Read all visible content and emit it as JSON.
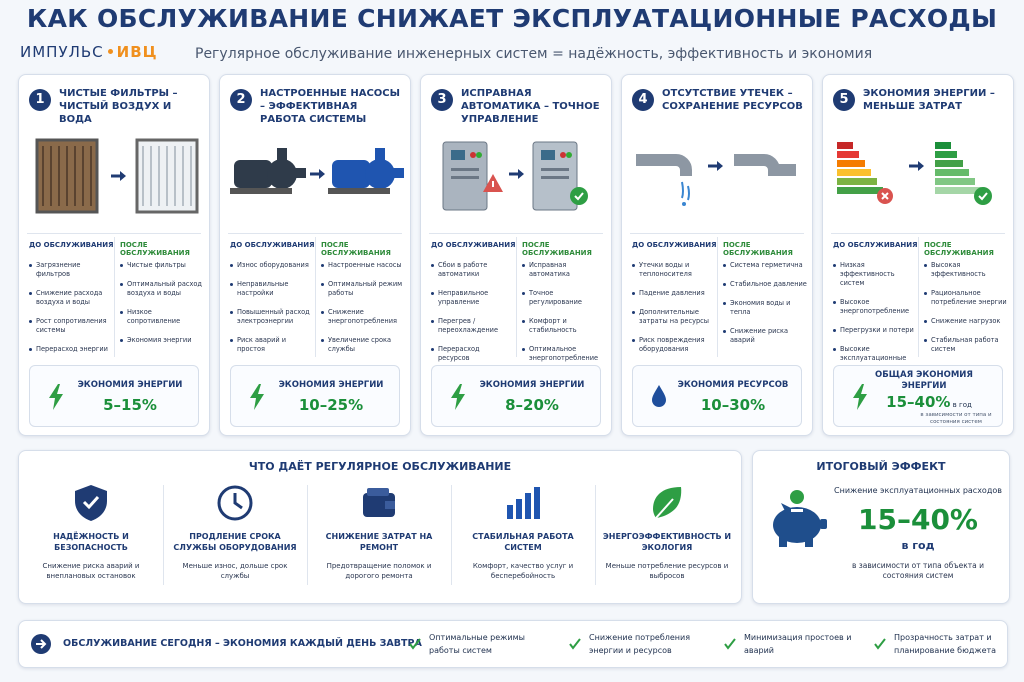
{
  "header": {
    "title": "КАК ОБСЛУЖИВАНИЕ СНИЖАЕТ ЭКСПЛУАТАЦИОННЫЕ РАСХОДЫ",
    "logo": {
      "name": "ИМПУЛЬС",
      "accent": "ИВЦ"
    },
    "subtitle": "Регулярное обслуживание инженерных систем = надёжность, эффективность и экономия"
  },
  "cards": [
    {
      "number": "1",
      "title": "ЧИСТЫЕ ФИЛЬТРЫ – ЧИСТЫЙ ВОЗДУХ И ВОДА",
      "before_label": "ДО ОБСЛУЖИВАНИЯ",
      "after_label": "ПОСЛЕ ОБСЛУЖИВАНИЯ",
      "before": [
        "Загрязнение фильтров",
        "Снижение расхода воздуха и воды",
        "Рост сопротивления системы",
        "Перерасход энергии"
      ],
      "after": [
        "Чистые фильтры",
        "Оптимальный расход воздуха и воды",
        "Низкое сопротивление",
        "Экономия энергии"
      ],
      "saving_label": "ЭКОНОМИЯ ЭНЕРГИИ",
      "saving": "5–15%"
    },
    {
      "number": "2",
      "title": "НАСТРОЕННЫЕ НАСОСЫ – ЭФФЕКТИВНАЯ РАБОТА СИСТЕМЫ",
      "before_label": "ДО ОБСЛУЖИВАНИЯ",
      "after_label": "ПОСЛЕ ОБСЛУЖИВАНИЯ",
      "before": [
        "Износ оборудования",
        "Неправильные настройки",
        "Повышенный расход электроэнергии",
        "Риск аварий и простоя"
      ],
      "after": [
        "Настроенные насосы",
        "Оптимальный режим работы",
        "Снижение энергопотребления",
        "Увеличение срока службы"
      ],
      "saving_label": "ЭКОНОМИЯ ЭНЕРГИИ",
      "saving": "10–25%"
    },
    {
      "number": "3",
      "title": "ИСПРАВНАЯ АВТОМАТИКА – ТОЧНОЕ УПРАВЛЕНИЕ",
      "before_label": "ДО ОБСЛУЖИВАНИЯ",
      "after_label": "ПОСЛЕ ОБСЛУЖИВАНИЯ",
      "before": [
        "Сбои в работе автоматики",
        "Неправильное управление",
        "Перегрев / переохлаждение",
        "Перерасход ресурсов"
      ],
      "after": [
        "Исправная автоматика",
        "Точное регулирование",
        "Комфорт и стабильность",
        "Оптимальное энергопотребление"
      ],
      "saving_label": "ЭКОНОМИЯ ЭНЕРГИИ",
      "saving": "8–20%"
    },
    {
      "number": "4",
      "title": "ОТСУТСТВИЕ УТЕЧЕК – СОХРАНЕНИЕ РЕСУРСОВ",
      "before_label": "ДО ОБСЛУЖИВАНИЯ",
      "after_label": "ПОСЛЕ ОБСЛУЖИВАНИЯ",
      "before": [
        "Утечки воды и теплоносителя",
        "Падение давления",
        "Дополнительные затраты на ресурсы",
        "Риск повреждения оборудования"
      ],
      "after": [
        "Система герметична",
        "Стабильное давление",
        "Экономия воды и тепла",
        "Снижение риска аварий"
      ],
      "saving_label": "ЭКОНОМИЯ РЕСУРСОВ",
      "saving": "10–30%"
    },
    {
      "number": "5",
      "title": "ЭКОНОМИЯ ЭНЕРГИИ – МЕНЬШЕ ЗАТРАТ",
      "before_label": "ДО ОБСЛУЖИВАНИЯ",
      "after_label": "ПОСЛЕ ОБСЛУЖИВАНИЯ",
      "before": [
        "Низкая эффективность систем",
        "Высокое энергопотребление",
        "Перегрузки и потери",
        "Высокие эксплуатационные расходы"
      ],
      "after": [
        "Высокая эффективность",
        "Рациональное потребление энергии",
        "Снижение нагрузок",
        "Стабильная работа систем"
      ],
      "saving_label": "ОБЩАЯ ЭКОНОМИЯ ЭНЕРГИИ",
      "saving": "15–40%",
      "saving_period": "в год",
      "saving_note": "в зависимости от типа и состояния систем"
    }
  ],
  "benefits": {
    "title": "ЧТО ДАЁТ РЕГУЛЯРНОЕ ОБСЛУЖИВАНИЕ",
    "items": [
      {
        "title": "НАДЁЖНОСТЬ И БЕЗОПАСНОСТЬ",
        "text": "Снижение риска аварий и внеплановых остановок"
      },
      {
        "title": "ПРОДЛЕНИЕ СРОКА СЛУЖБЫ ОБОРУДОВАНИЯ",
        "text": "Меньше износ, дольше срок службы"
      },
      {
        "title": "СНИЖЕНИЕ ЗАТРАТ НА РЕМОНТ",
        "text": "Предотвращение поломок и дорогого ремонта"
      },
      {
        "title": "СТАБИЛЬНАЯ РАБОТА СИСТЕМ",
        "text": "Комфорт, качество услуг и бесперебойность"
      },
      {
        "title": "ЭНЕРГОЭФФЕКТИВНОСТЬ И ЭКОЛОГИЯ",
        "text": "Меньше потребление ресурсов и выбросов"
      }
    ]
  },
  "result": {
    "title": "ИТОГОВЫЙ ЭФФЕКТ",
    "label": "Снижение эксплуатационных расходов",
    "value": "15–40%",
    "period": "в год",
    "note": "в зависимости от типа объекта и состояния систем"
  },
  "footer": {
    "slogan": "ОБСЛУЖИВАНИЕ СЕГОДНЯ – ЭКОНОМИЯ КАЖДЫЙ ДЕНЬ ЗАВТРА",
    "items": [
      "Оптимальные режимы работы систем",
      "Снижение потребления энергии и ресурсов",
      "Минимизация простоев и аварий",
      "Прозрачность затрат и планирование бюджета"
    ]
  }
}
